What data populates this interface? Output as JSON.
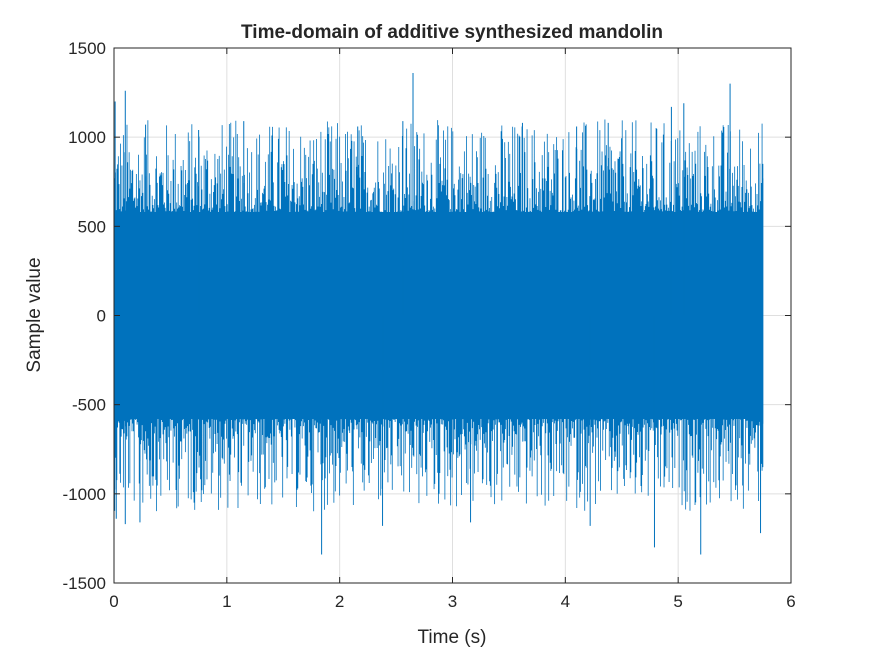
{
  "chart_data": {
    "type": "line",
    "title": "Time-domain of additive synthesized mandolin",
    "xlabel": "Time (s)",
    "ylabel": "Sample value",
    "xlim": [
      0,
      6
    ],
    "ylim": [
      -1500,
      1500
    ],
    "xticks": [
      0,
      1,
      2,
      3,
      4,
      5,
      6
    ],
    "xtick_labels": [
      "0",
      "1",
      "2",
      "3",
      "4",
      "5",
      "6"
    ],
    "yticks": [
      -1500,
      -1000,
      -500,
      0,
      500,
      1000,
      1500
    ],
    "ytick_labels": [
      "-1500",
      "-1000",
      "-500",
      "0",
      "500",
      "1000",
      "1500"
    ],
    "grid": true,
    "series": [
      {
        "color": "#0072BD",
        "x_range": [
          0,
          5.75
        ],
        "dense_amplitude": 580,
        "typical_peak": 850,
        "peaks": [
          {
            "x": 0.01,
            "y": 1200
          },
          {
            "x": 0.1,
            "y": 1260
          },
          {
            "x": 0.28,
            "y": 1070
          },
          {
            "x": 0.75,
            "y": 1040
          },
          {
            "x": 1.15,
            "y": 1090
          },
          {
            "x": 2.16,
            "y": 1060
          },
          {
            "x": 2.56,
            "y": 1090
          },
          {
            "x": 2.65,
            "y": 1360
          },
          {
            "x": 3.62,
            "y": 1080
          },
          {
            "x": 4.1,
            "y": 1060
          },
          {
            "x": 4.38,
            "y": 1080
          },
          {
            "x": 4.94,
            "y": 1170
          },
          {
            "x": 5.05,
            "y": 1190
          },
          {
            "x": 5.46,
            "y": 1300
          },
          {
            "x": 0.02,
            "y": -1140
          },
          {
            "x": 0.1,
            "y": -1170
          },
          {
            "x": 0.23,
            "y": -1160
          },
          {
            "x": 1.84,
            "y": -1340
          },
          {
            "x": 2.38,
            "y": -1180
          },
          {
            "x": 3.16,
            "y": -1160
          },
          {
            "x": 4.22,
            "y": -1180
          },
          {
            "x": 4.79,
            "y": -1300
          },
          {
            "x": 5.2,
            "y": -1340
          },
          {
            "x": 5.73,
            "y": -1220
          }
        ]
      }
    ]
  }
}
